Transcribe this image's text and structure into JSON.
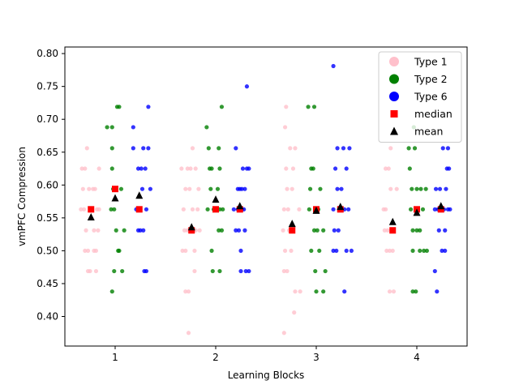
{
  "chart_data": {
    "type": "scatter",
    "xlabel": "Learning Blocks",
    "ylabel": "vmPFC Compression",
    "xlim": [
      0.5,
      4.5
    ],
    "ylim": [
      0.355,
      0.81
    ],
    "x_ticks": [
      1,
      2,
      3,
      4
    ],
    "x_tick_labels": [
      "1",
      "2",
      "3",
      "4"
    ],
    "y_ticks": [
      0.4,
      0.45,
      0.5,
      0.55,
      0.6,
      0.65,
      0.7,
      0.75,
      0.8
    ],
    "y_tick_labels": [
      "0.40",
      "0.45",
      "0.50",
      "0.55",
      "0.60",
      "0.65",
      "0.70",
      "0.75",
      "0.80"
    ],
    "grid": false,
    "legend_position": "top-right",
    "legend": [
      {
        "label": "Type 1",
        "marker": "circle",
        "color": "#ffc0cb"
      },
      {
        "label": "Type 2",
        "marker": "circle",
        "color": "#008000"
      },
      {
        "label": "Type 6",
        "marker": "circle",
        "color": "#0000ff"
      },
      {
        "label": "median",
        "marker": "square",
        "color": "#ff0000"
      },
      {
        "label": "mean",
        "marker": "triangle",
        "color": "#000000"
      }
    ],
    "series": [
      {
        "name": "Type 1",
        "color": "#ffc0cb",
        "points": [
          [
            0.67,
            0.625
          ],
          [
            0.7,
            0.625
          ],
          [
            0.72,
            0.656
          ],
          [
            0.68,
            0.594
          ],
          [
            0.74,
            0.594
          ],
          [
            0.78,
            0.594
          ],
          [
            0.8,
            0.594
          ],
          [
            0.66,
            0.563
          ],
          [
            0.69,
            0.563
          ],
          [
            0.82,
            0.563
          ],
          [
            0.84,
            0.563
          ],
          [
            0.71,
            0.531
          ],
          [
            0.79,
            0.531
          ],
          [
            0.83,
            0.531
          ],
          [
            0.7,
            0.5
          ],
          [
            0.73,
            0.5
          ],
          [
            0.79,
            0.5
          ],
          [
            0.81,
            0.5
          ],
          [
            0.73,
            0.469
          ],
          [
            0.75,
            0.469
          ],
          [
            0.81,
            0.469
          ],
          [
            0.84,
            0.625
          ],
          [
            1.66,
            0.625
          ],
          [
            1.72,
            0.625
          ],
          [
            1.75,
            0.625
          ],
          [
            1.77,
            0.656
          ],
          [
            1.8,
            0.625
          ],
          [
            1.7,
            0.594
          ],
          [
            1.74,
            0.594
          ],
          [
            1.83,
            0.594
          ],
          [
            1.68,
            0.563
          ],
          [
            1.77,
            0.563
          ],
          [
            1.82,
            0.563
          ],
          [
            1.69,
            0.531
          ],
          [
            1.72,
            0.531
          ],
          [
            1.8,
            0.531
          ],
          [
            1.84,
            0.531
          ],
          [
            1.67,
            0.5
          ],
          [
            1.7,
            0.5
          ],
          [
            1.79,
            0.5
          ],
          [
            1.7,
            0.438
          ],
          [
            1.73,
            0.438
          ],
          [
            1.79,
            0.469
          ],
          [
            1.73,
            0.375
          ],
          [
            2.7,
            0.719
          ],
          [
            2.69,
            0.688
          ],
          [
            2.74,
            0.656
          ],
          [
            2.79,
            0.656
          ],
          [
            2.7,
            0.625
          ],
          [
            2.77,
            0.625
          ],
          [
            2.71,
            0.594
          ],
          [
            2.76,
            0.594
          ],
          [
            2.68,
            0.563
          ],
          [
            2.72,
            0.563
          ],
          [
            2.83,
            0.563
          ],
          [
            2.67,
            0.531
          ],
          [
            2.73,
            0.531
          ],
          [
            2.69,
            0.5
          ],
          [
            2.75,
            0.5
          ],
          [
            2.68,
            0.469
          ],
          [
            2.71,
            0.469
          ],
          [
            2.79,
            0.438
          ],
          [
            2.84,
            0.438
          ],
          [
            2.78,
            0.406
          ],
          [
            2.68,
            0.375
          ],
          [
            3.74,
            0.656
          ],
          [
            3.69,
            0.625
          ],
          [
            3.72,
            0.625
          ],
          [
            3.74,
            0.594
          ],
          [
            3.8,
            0.594
          ],
          [
            3.67,
            0.563
          ],
          [
            3.69,
            0.563
          ],
          [
            3.68,
            0.531
          ],
          [
            3.71,
            0.531
          ],
          [
            3.75,
            0.531
          ],
          [
            3.7,
            0.5
          ],
          [
            3.73,
            0.5
          ],
          [
            3.76,
            0.5
          ],
          [
            3.73,
            0.438
          ],
          [
            3.77,
            0.438
          ]
        ]
      },
      {
        "name": "Type 2",
        "color": "#008000",
        "points": [
          [
            0.92,
            0.688
          ],
          [
            0.97,
            0.688
          ],
          [
            1.02,
            0.719
          ],
          [
            1.04,
            0.719
          ],
          [
            0.97,
            0.656
          ],
          [
            0.97,
            0.625
          ],
          [
            0.98,
            0.594
          ],
          [
            1.06,
            0.594
          ],
          [
            0.96,
            0.563
          ],
          [
            0.99,
            0.563
          ],
          [
            1.01,
            0.531
          ],
          [
            1.09,
            0.531
          ],
          [
            1.03,
            0.5
          ],
          [
            1.04,
            0.5
          ],
          [
            0.99,
            0.469
          ],
          [
            1.07,
            0.469
          ],
          [
            0.97,
            0.438
          ],
          [
            1.91,
            0.688
          ],
          [
            2.06,
            0.719
          ],
          [
            1.93,
            0.656
          ],
          [
            2.03,
            0.656
          ],
          [
            1.94,
            0.625
          ],
          [
            1.96,
            0.625
          ],
          [
            2.04,
            0.625
          ],
          [
            1.95,
            0.594
          ],
          [
            2.02,
            0.594
          ],
          [
            1.92,
            0.563
          ],
          [
            1.98,
            0.563
          ],
          [
            2.04,
            0.563
          ],
          [
            2.07,
            0.563
          ],
          [
            2.03,
            0.531
          ],
          [
            2.06,
            0.531
          ],
          [
            1.96,
            0.5
          ],
          [
            1.97,
            0.469
          ],
          [
            2.04,
            0.469
          ],
          [
            2.92,
            0.719
          ],
          [
            2.98,
            0.719
          ],
          [
            2.95,
            0.625
          ],
          [
            2.97,
            0.625
          ],
          [
            2.94,
            0.594
          ],
          [
            3.04,
            0.594
          ],
          [
            2.93,
            0.563
          ],
          [
            3.02,
            0.563
          ],
          [
            2.98,
            0.531
          ],
          [
            3.01,
            0.531
          ],
          [
            3.07,
            0.531
          ],
          [
            2.95,
            0.5
          ],
          [
            3.03,
            0.5
          ],
          [
            2.99,
            0.469
          ],
          [
            3.09,
            0.469
          ],
          [
            3.0,
            0.438
          ],
          [
            3.07,
            0.438
          ],
          [
            3.97,
            0.688
          ],
          [
            3.92,
            0.656
          ],
          [
            3.98,
            0.656
          ],
          [
            3.93,
            0.625
          ],
          [
            3.95,
            0.594
          ],
          [
            4.0,
            0.594
          ],
          [
            4.04,
            0.594
          ],
          [
            4.09,
            0.594
          ],
          [
            3.94,
            0.563
          ],
          [
            4.01,
            0.563
          ],
          [
            4.06,
            0.563
          ],
          [
            3.96,
            0.531
          ],
          [
            4.0,
            0.531
          ],
          [
            4.03,
            0.531
          ],
          [
            3.96,
            0.5
          ],
          [
            4.03,
            0.5
          ],
          [
            4.07,
            0.5
          ],
          [
            4.1,
            0.5
          ],
          [
            3.96,
            0.438
          ],
          [
            3.99,
            0.438
          ]
        ]
      },
      {
        "name": "Type 6",
        "color": "#0000ff",
        "points": [
          [
            1.18,
            0.688
          ],
          [
            1.33,
            0.719
          ],
          [
            1.18,
            0.656
          ],
          [
            1.28,
            0.656
          ],
          [
            1.33,
            0.656
          ],
          [
            1.23,
            0.625
          ],
          [
            1.26,
            0.625
          ],
          [
            1.3,
            0.625
          ],
          [
            1.27,
            0.594
          ],
          [
            1.35,
            0.594
          ],
          [
            1.21,
            0.563
          ],
          [
            1.25,
            0.563
          ],
          [
            1.31,
            0.563
          ],
          [
            1.23,
            0.531
          ],
          [
            1.25,
            0.531
          ],
          [
            1.28,
            0.531
          ],
          [
            1.29,
            0.469
          ],
          [
            1.31,
            0.469
          ],
          [
            2.31,
            0.75
          ],
          [
            2.2,
            0.656
          ],
          [
            2.27,
            0.625
          ],
          [
            2.31,
            0.625
          ],
          [
            2.33,
            0.625
          ],
          [
            2.22,
            0.594
          ],
          [
            2.24,
            0.594
          ],
          [
            2.26,
            0.594
          ],
          [
            2.29,
            0.594
          ],
          [
            2.18,
            0.563
          ],
          [
            2.22,
            0.563
          ],
          [
            2.26,
            0.563
          ],
          [
            2.28,
            0.563
          ],
          [
            2.2,
            0.531
          ],
          [
            2.23,
            0.531
          ],
          [
            2.29,
            0.531
          ],
          [
            2.25,
            0.5
          ],
          [
            2.25,
            0.469
          ],
          [
            2.3,
            0.469
          ],
          [
            2.33,
            0.469
          ],
          [
            3.17,
            0.781
          ],
          [
            3.21,
            0.656
          ],
          [
            3.27,
            0.656
          ],
          [
            3.33,
            0.656
          ],
          [
            3.19,
            0.625
          ],
          [
            3.3,
            0.625
          ],
          [
            3.21,
            0.594
          ],
          [
            3.25,
            0.594
          ],
          [
            3.17,
            0.563
          ],
          [
            3.28,
            0.563
          ],
          [
            3.32,
            0.563
          ],
          [
            3.18,
            0.531
          ],
          [
            3.22,
            0.531
          ],
          [
            3.17,
            0.5
          ],
          [
            3.2,
            0.5
          ],
          [
            3.3,
            0.5
          ],
          [
            3.35,
            0.5
          ],
          [
            3.28,
            0.438
          ],
          [
            4.26,
            0.656
          ],
          [
            4.31,
            0.656
          ],
          [
            4.3,
            0.625
          ],
          [
            4.32,
            0.625
          ],
          [
            4.19,
            0.594
          ],
          [
            4.23,
            0.594
          ],
          [
            4.29,
            0.594
          ],
          [
            4.18,
            0.563
          ],
          [
            4.21,
            0.563
          ],
          [
            4.27,
            0.563
          ],
          [
            4.31,
            0.563
          ],
          [
            4.33,
            0.563
          ],
          [
            4.22,
            0.531
          ],
          [
            4.28,
            0.531
          ],
          [
            4.25,
            0.5
          ],
          [
            4.28,
            0.5
          ],
          [
            4.18,
            0.469
          ],
          [
            4.2,
            0.438
          ]
        ]
      },
      {
        "name": "median",
        "color": "#ff0000",
        "marker": "square",
        "points": [
          [
            0.76,
            0.563
          ],
          [
            1.0,
            0.594
          ],
          [
            1.24,
            0.563
          ],
          [
            1.76,
            0.531
          ],
          [
            2.0,
            0.563
          ],
          [
            2.24,
            0.563
          ],
          [
            2.76,
            0.531
          ],
          [
            3.0,
            0.563
          ],
          [
            3.24,
            0.563
          ],
          [
            3.76,
            0.531
          ],
          [
            4.0,
            0.563
          ],
          [
            4.24,
            0.563
          ]
        ]
      },
      {
        "name": "mean",
        "color": "#000000",
        "marker": "triangle",
        "points": [
          [
            0.76,
            0.551
          ],
          [
            1.0,
            0.58
          ],
          [
            1.24,
            0.584
          ],
          [
            1.76,
            0.536
          ],
          [
            2.0,
            0.578
          ],
          [
            2.24,
            0.568
          ],
          [
            2.76,
            0.541
          ],
          [
            3.0,
            0.561
          ],
          [
            3.24,
            0.567
          ],
          [
            3.76,
            0.544
          ],
          [
            4.0,
            0.558
          ],
          [
            4.24,
            0.568
          ]
        ]
      }
    ]
  }
}
